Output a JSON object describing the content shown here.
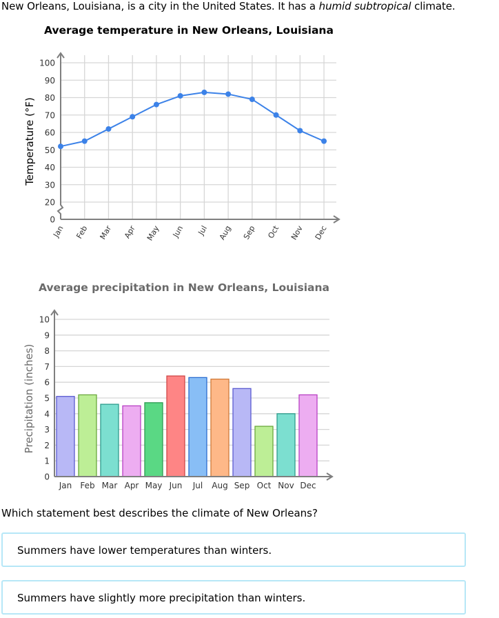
{
  "intro": {
    "before": "New Orleans, Louisiana, is a city in the United States. It has a ",
    "emphasis": "humid subtropical",
    "after": " climate."
  },
  "question": "Which statement best describes the climate of New Orleans?",
  "options": [
    {
      "label": "Summers have lower temperatures than winters."
    },
    {
      "label": "Summers have slightly more precipitation than winters."
    }
  ],
  "colors": {
    "line": "#3c82e8",
    "grid": "#d6d6d6",
    "axis": "#7f7f7f",
    "option_border": "#b6e7f7"
  },
  "chart_data": [
    {
      "type": "line",
      "title": "Average temperature in New Orleans, Louisiana",
      "xlabel": "",
      "ylabel": "Temperature (°F)",
      "categories": [
        "Jan",
        "Feb",
        "Mar",
        "Apr",
        "May",
        "Jun",
        "Jul",
        "Aug",
        "Sep",
        "Oct",
        "Nov",
        "Dec"
      ],
      "values": [
        52,
        55,
        62,
        69,
        76,
        81,
        83,
        82,
        79,
        70,
        61,
        55
      ],
      "yticks": [
        0,
        20,
        30,
        40,
        50,
        60,
        70,
        80,
        90,
        100
      ],
      "ylim": [
        0,
        100
      ],
      "axis_break": "between 0 and 20",
      "grid": true,
      "xtick_rotation": -60
    },
    {
      "type": "bar",
      "title": "Average precipitation in New Orleans, Louisiana",
      "xlabel": "",
      "ylabel": "Precipitation (inches)",
      "categories": [
        "Jan",
        "Feb",
        "Mar",
        "Apr",
        "May",
        "Jun",
        "Jul",
        "Aug",
        "Sep",
        "Oct",
        "Nov",
        "Dec"
      ],
      "values": [
        5.1,
        5.2,
        4.6,
        4.5,
        4.7,
        6.4,
        6.3,
        6.2,
        5.6,
        3.2,
        4.0,
        5.2
      ],
      "bar_colors": [
        "#b8b8f6",
        "#bdee96",
        "#7cdfd0",
        "#edadf1",
        "#5ad884",
        "#fe8585",
        "#88bef6",
        "#feb888",
        "#b8b8f6",
        "#bdee96",
        "#7cdfd0",
        "#edadf1"
      ],
      "bar_borders": [
        "#5a5ad0",
        "#6aa83c",
        "#2e9c8c",
        "#b840c4",
        "#2e9c52",
        "#d04848",
        "#2a6cd0",
        "#d07a3a",
        "#5a5ad0",
        "#6aa83c",
        "#2e9c8c",
        "#b840c4"
      ],
      "yticks": [
        0,
        1,
        2,
        3,
        4,
        5,
        6,
        7,
        8,
        9,
        10
      ],
      "ylim": [
        0,
        10
      ],
      "grid": true
    }
  ]
}
